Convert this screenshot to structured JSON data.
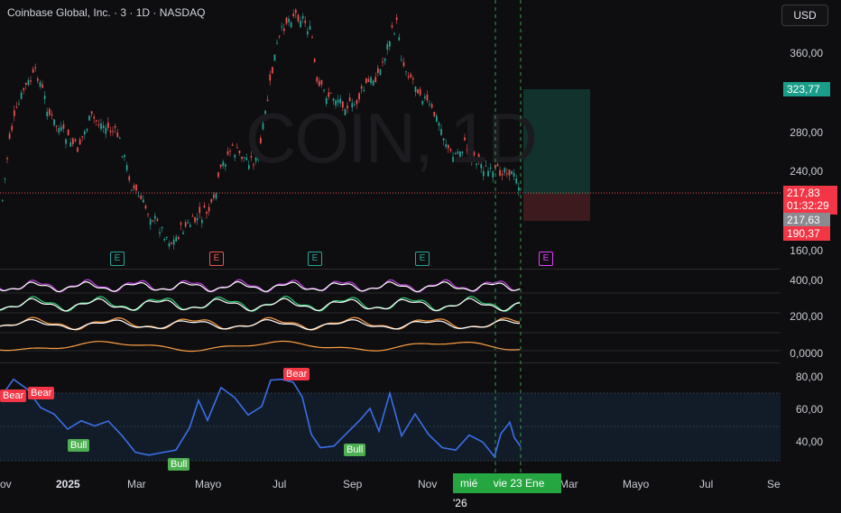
{
  "header": {
    "title": "Coinbase Global, Inc. · 3 · 1D · NASDAQ",
    "currency": "USD"
  },
  "watermark": "COIN, 1D",
  "price_axis": {
    "labels": [
      "360,00",
      "280,00",
      "240,00",
      "160,00"
    ]
  },
  "price_boxes": {
    "target": "323,77",
    "last": "217,83",
    "countdown": "01:32:29",
    "marker": "217,63",
    "stop": "190,37"
  },
  "colors": {
    "up": "#26a69a",
    "down": "#ef5350",
    "target": "#1a9e8a",
    "stop": "#f23645",
    "rsi": "#3b6fe8",
    "bull": "#4caf50",
    "bear": "#f23645"
  },
  "earnings_markers": [
    "E",
    "E",
    "E",
    "E",
    "E"
  ],
  "indicator_axis": {
    "labels": [
      "400,00",
      "200,00",
      "0,0000"
    ]
  },
  "rsi_axis": {
    "labels": [
      "80,00",
      "60,00",
      "40,00"
    ]
  },
  "rsi_labels": {
    "bear": "Bear",
    "bull": "Bull"
  },
  "time_axis": {
    "labels": [
      "ov",
      "2025",
      "Mar",
      "Mayo",
      "Jul",
      "Sep",
      "Nov",
      "Mar",
      "Mayo",
      "Jul",
      "Se"
    ]
  },
  "cursor": {
    "day": "mié",
    "date": "vie 23 Ene '26"
  }
}
